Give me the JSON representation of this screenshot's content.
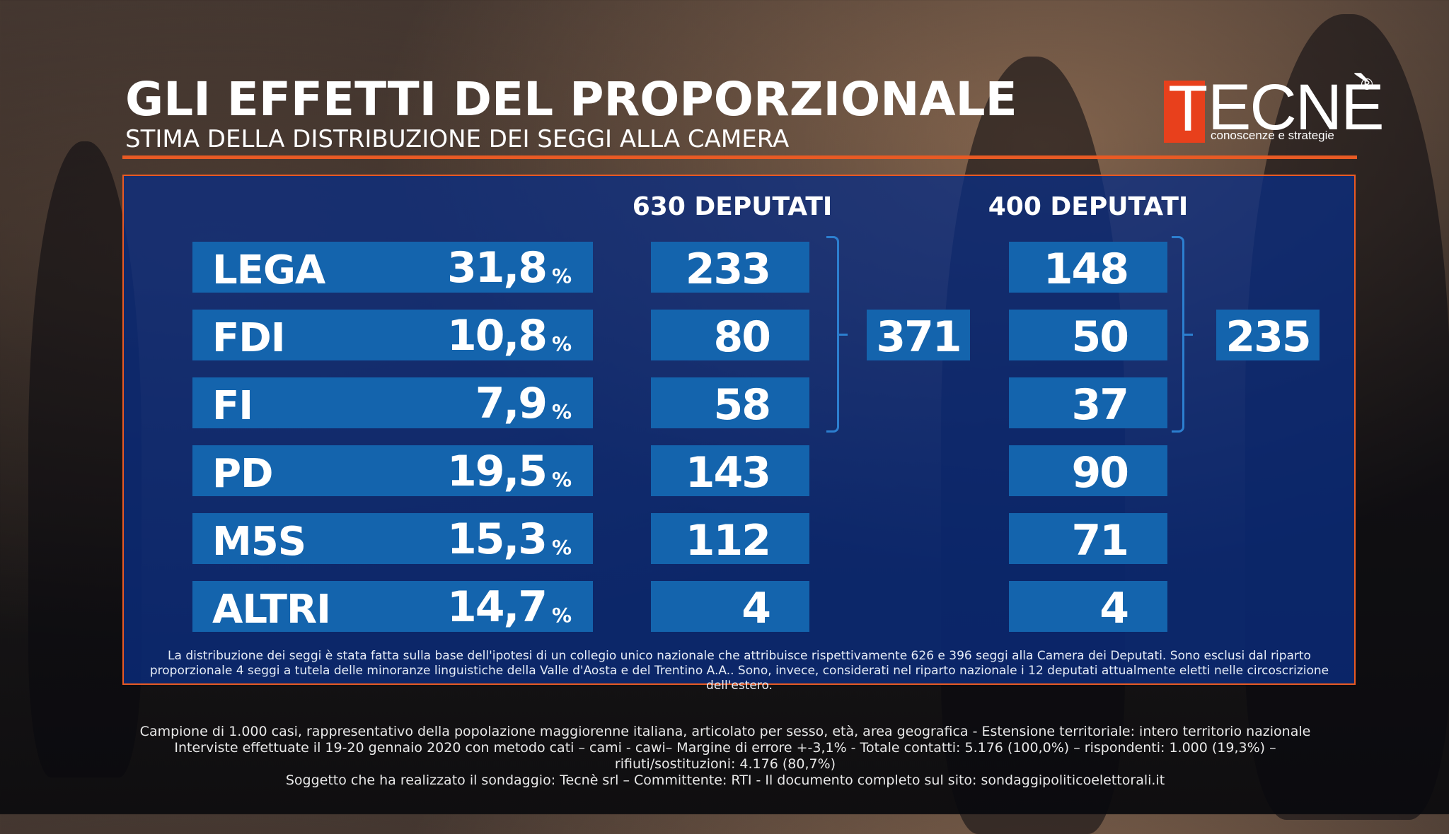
{
  "header": {
    "title": "GLI EFFETTI DEL PROPORZIONALE",
    "subtitle": "STIMA DELLA DISTRIBUZIONE DEI SEGGI ALLA CAMERA"
  },
  "logo": {
    "first_letter": "T",
    "rest": "ECNÈ",
    "registered": "®",
    "tagline": "conoscenze e strategie"
  },
  "colors": {
    "accent": "#e85a24",
    "bar": "#1464ad",
    "panel": "#0a2d82",
    "bracket": "#2c7fd0"
  },
  "chart_data": {
    "type": "table",
    "title": "GLI EFFETTI DEL PROPORZIONALE",
    "subtitle": "STIMA DELLA DISTRIBUZIONE DEI SEGGI ALLA CAMERA",
    "columns": [
      "630 DEPUTATI",
      "400 DEPUTATI"
    ],
    "rows": [
      {
        "party": "LEGA",
        "pct": "31,8",
        "pct_sign": "%",
        "seats_630": "233",
        "seats_400": "148"
      },
      {
        "party": "FDI",
        "pct": "10,8",
        "pct_sign": "%",
        "seats_630": "80",
        "seats_400": "50"
      },
      {
        "party": "FI",
        "pct": "7,9",
        "pct_sign": "%",
        "seats_630": "58",
        "seats_400": "37"
      },
      {
        "party": "PD",
        "pct": "19,5",
        "pct_sign": "%",
        "seats_630": "143",
        "seats_400": "90"
      },
      {
        "party": "M5S",
        "pct": "15,3",
        "pct_sign": "%",
        "seats_630": "112",
        "seats_400": "71"
      },
      {
        "party": "ALTRI",
        "pct": "14,7",
        "pct_sign": "%",
        "seats_630": "4",
        "seats_400": "4"
      }
    ],
    "coalition_totals": {
      "630": "371",
      "400": "235"
    }
  },
  "note": "La distribuzione dei seggi è stata fatta sulla base dell'ipotesi di un collegio unico nazionale che attribuisce rispettivamente 626 e 396 seggi alla Camera dei Deputati. Sono esclusi dal riparto proporzionale 4 seggi a tutela delle minoranze linguistiche della Valle d'Aosta e del Trentino A.A.. Sono, invece, considerati nel riparto nazionale i 12 deputati attualmente eletti nelle circoscrizione dell'estero.",
  "footer": {
    "line1": "Campione di 1.000 casi, rappresentativo della popolazione maggiorenne italiana, articolato per sesso, età, area geografica - Estensione territoriale: intero territorio nazionale",
    "line2": "Interviste effettuate il 19-20 gennaio 2020 con metodo cati – cami - cawi– Margine di errore +-3,1%  - Totale contatti: 5.176 (100,0%) – rispondenti:  1.000 (19,3%) – rifiuti/sostituzioni: 4.176 (80,7%)",
    "line3": "Soggetto che ha realizzato il sondaggio: Tecnè srl – Committente: RTI - Il documento completo sul sito: sondaggipoliticoelettorali.it"
  }
}
